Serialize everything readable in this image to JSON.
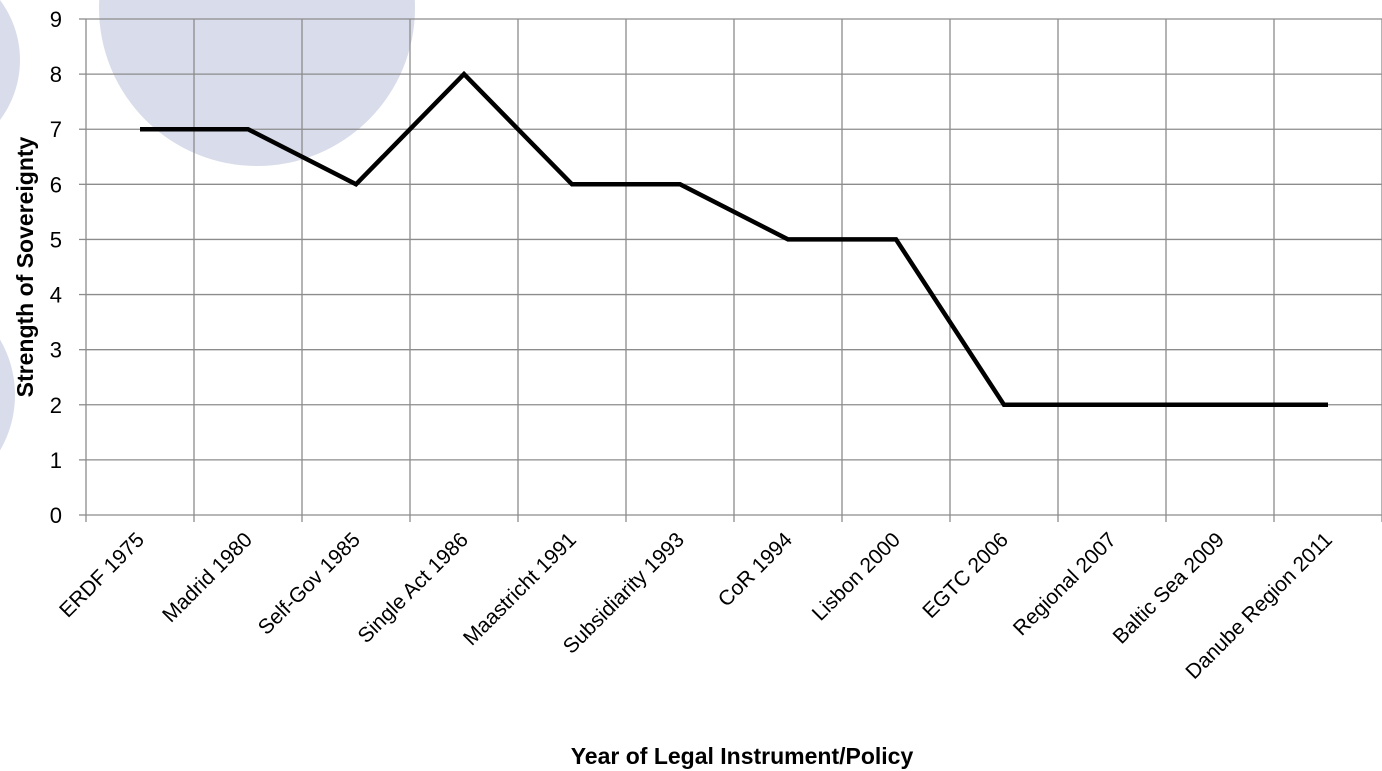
{
  "chart_data": {
    "type": "line",
    "xlabel": "Year of Legal Instrument/Policy",
    "ylabel": "Strength of Sovereignty",
    "categories": [
      "ERDF 1975",
      "Madrid 1980",
      "Self-Gov 1985",
      "Single Act 1986",
      "Maastricht 1991",
      "Subsidiarity 1993",
      "CoR 1994",
      "Lisbon 2000",
      "EGTC 2006",
      "Regional 2007",
      "Baltic Sea 2009",
      "Danube Region 2011"
    ],
    "series": [
      {
        "values": [
          7,
          7,
          6,
          8,
          6,
          6,
          5,
          5,
          2,
          2,
          2,
          2
        ]
      }
    ],
    "ylim": [
      0,
      9
    ],
    "yticks": [
      "0",
      "1",
      "2",
      "3",
      "4",
      "5",
      "6",
      "7",
      "8",
      "9"
    ],
    "grid": true,
    "legend": "none",
    "colors": {
      "line": "#000000",
      "grid": "#8c8c8c",
      "background_circles": "#d9dcea"
    }
  }
}
